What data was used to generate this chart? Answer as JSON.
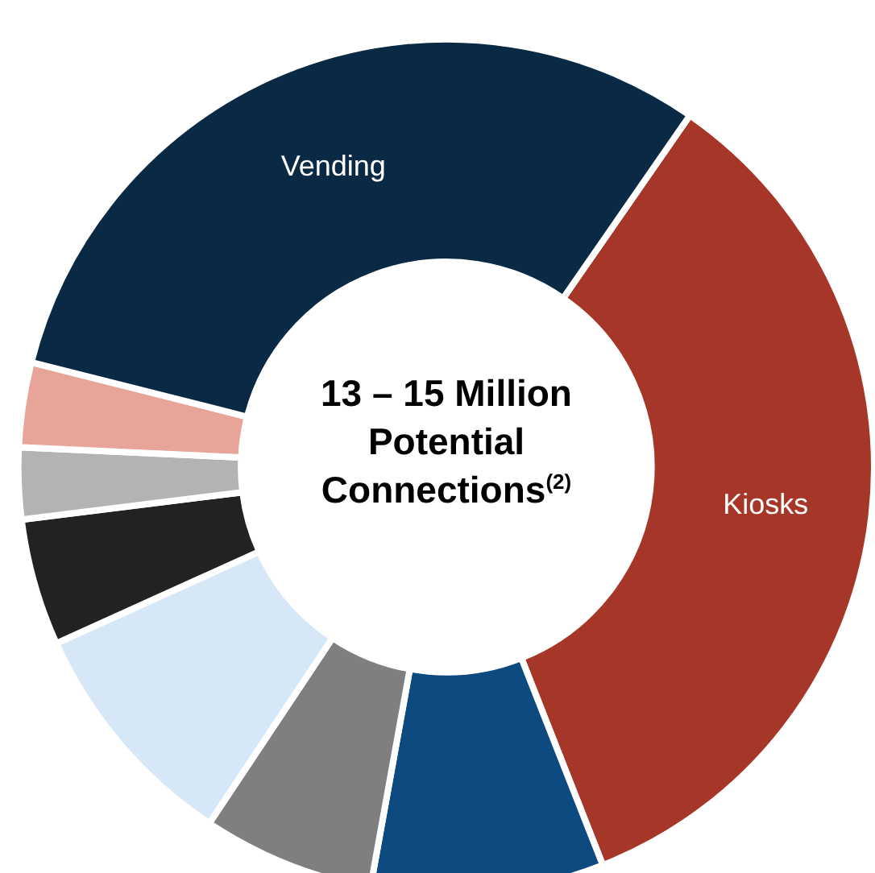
{
  "chart_data": {
    "type": "donut",
    "title": "13 – 15 Million Potential Connections$^{(2)}$",
    "categories": [
      "Kiosks",
      null,
      null,
      null,
      null,
      null,
      null,
      "Vending"
    ],
    "values": [
      34.4,
      8.8,
      6.5,
      8.9,
      4.8,
      2.7,
      3.2,
      30.7
    ],
    "colors": [
      "#a63628",
      "#0d4a80",
      "#7f7f7f",
      "#d6e8f8",
      "#222222",
      "#b3b3b3",
      "#e9a49a",
      "#0a2944"
    ],
    "legend": false
  }
}
